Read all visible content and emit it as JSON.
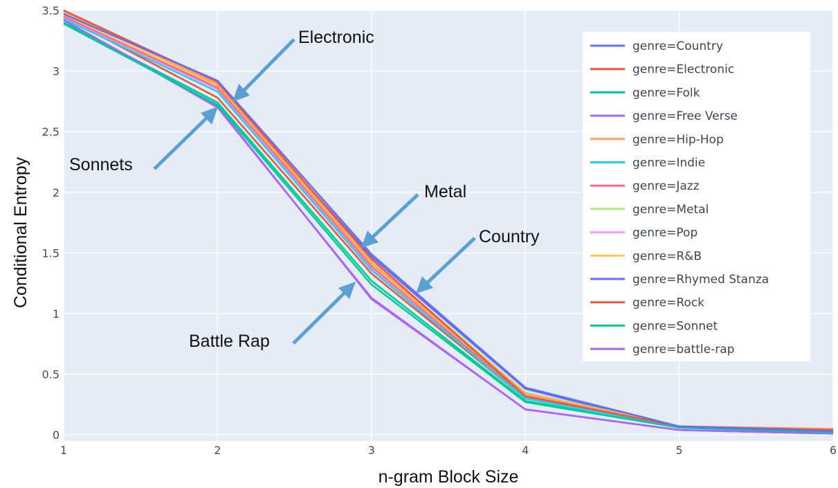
{
  "chart_data": {
    "type": "line",
    "xlabel": "n-gram Block Size",
    "ylabel": "Conditional Entropy",
    "xlim": [
      1,
      6
    ],
    "ylim": [
      -0.05,
      3.5
    ],
    "x_ticks": [
      1,
      2,
      3,
      4,
      5,
      6
    ],
    "y_ticks": [
      0,
      0.5,
      1,
      1.5,
      2,
      2.5,
      3,
      3.5
    ],
    "y_tick_labels": [
      "0",
      "0.5",
      "1",
      "1.5",
      "2",
      "2.5",
      "3",
      "3.5"
    ],
    "grid": true,
    "legend_position": "top-right",
    "x": [
      1,
      2,
      3,
      4,
      5,
      6
    ],
    "series": [
      {
        "name": "genre=Country",
        "color": "#636efa",
        "values": [
          3.47,
          2.92,
          1.49,
          0.39,
          0.07,
          0.03
        ]
      },
      {
        "name": "genre=Electronic",
        "color": "#ef553b",
        "values": [
          3.5,
          2.91,
          1.45,
          0.32,
          0.07,
          0.04
        ]
      },
      {
        "name": "genre=Folk",
        "color": "#00cc96",
        "values": [
          3.39,
          2.72,
          1.24,
          0.27,
          0.06,
          0.02
        ]
      },
      {
        "name": "genre=Free Verse",
        "color": "#ab63fa",
        "values": [
          3.42,
          2.71,
          1.12,
          0.21,
          0.04,
          0.01
        ]
      },
      {
        "name": "genre=Hip-Hop",
        "color": "#ffa15a",
        "values": [
          3.49,
          2.89,
          1.42,
          0.34,
          0.07,
          0.05
        ]
      },
      {
        "name": "genre=Indie",
        "color": "#19d3f3",
        "values": [
          3.43,
          2.83,
          1.36,
          0.3,
          0.06,
          0.03
        ]
      },
      {
        "name": "genre=Jazz",
        "color": "#ff6692",
        "values": [
          3.45,
          2.86,
          1.39,
          0.31,
          0.06,
          0.03
        ]
      },
      {
        "name": "genre=Metal",
        "color": "#b6e880",
        "values": [
          3.48,
          2.9,
          1.44,
          0.35,
          0.07,
          0.04
        ]
      },
      {
        "name": "genre=Pop",
        "color": "#ff97ff",
        "values": [
          3.44,
          2.85,
          1.38,
          0.3,
          0.06,
          0.03
        ]
      },
      {
        "name": "genre=R&B",
        "color": "#fecb52",
        "values": [
          3.46,
          2.88,
          1.41,
          0.32,
          0.07,
          0.04
        ]
      },
      {
        "name": "genre=Rhymed Stanza",
        "color": "#636efa",
        "values": [
          3.44,
          2.88,
          1.47,
          0.38,
          0.06,
          0.02
        ]
      },
      {
        "name": "genre=Rock",
        "color": "#ef553b",
        "values": [
          3.45,
          2.78,
          1.33,
          0.3,
          0.06,
          0.03
        ]
      },
      {
        "name": "genre=Sonnet",
        "color": "#00cc96",
        "values": [
          3.4,
          2.74,
          1.27,
          0.28,
          0.06,
          0.02
        ]
      },
      {
        "name": "genre=battle-rap",
        "color": "#ab63fa",
        "values": [
          3.42,
          2.7,
          1.13,
          0.21,
          0.04,
          0.01
        ]
      }
    ],
    "annotations": [
      {
        "text": "Electronic"
      },
      {
        "text": "Sonnets"
      },
      {
        "text": "Metal"
      },
      {
        "text": "Country"
      },
      {
        "text": "Battle Rap"
      }
    ]
  }
}
